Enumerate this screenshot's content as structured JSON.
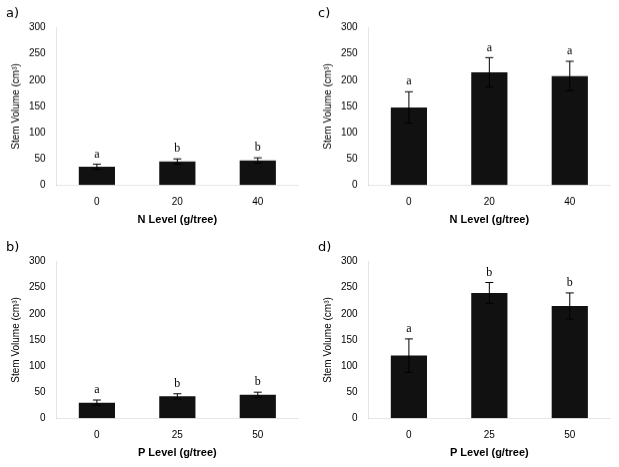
{
  "chart_data": [
    {
      "type": "bar",
      "title": "a)",
      "xlabel": "N Level (g/tree)",
      "ylabel": "Stem Volume (cm³)",
      "categories": [
        "0",
        "20",
        "40"
      ],
      "values": [
        35,
        45,
        47
      ],
      "errors": [
        5,
        5,
        5
      ],
      "sig_labels": [
        "a",
        "b",
        "b"
      ],
      "color": "#111111",
      "ylim": [
        0,
        300
      ],
      "yticks": [
        0,
        50,
        100,
        150,
        200,
        250,
        300
      ],
      "grid": false
    },
    {
      "type": "bar",
      "title": "b)",
      "xlabel": "P Level (g/tree)",
      "ylabel": "Stem Volume (cm³)",
      "categories": [
        "0",
        "25",
        "50"
      ],
      "values": [
        30,
        42,
        45
      ],
      "errors": [
        5,
        5,
        5
      ],
      "sig_labels": [
        "a",
        "b",
        "b"
      ],
      "color": "#111111",
      "ylim": [
        0,
        300
      ],
      "yticks": [
        0,
        50,
        100,
        150,
        200,
        250,
        300
      ],
      "grid": false
    },
    {
      "type": "bar",
      "title": "c)",
      "xlabel": "N Level (g/tree)",
      "ylabel": "Stem Volume (cm³)",
      "categories": [
        "0",
        "20",
        "40"
      ],
      "values": [
        148,
        215,
        208
      ],
      "errors": [
        30,
        28,
        28
      ],
      "sig_labels": [
        "a",
        "a",
        "a"
      ],
      "color": "#111111",
      "ylim": [
        0,
        300
      ],
      "yticks": [
        0,
        50,
        100,
        150,
        200,
        250,
        300
      ],
      "grid": false
    },
    {
      "type": "bar",
      "title": "d)",
      "xlabel": "P Level (g/tree)",
      "ylabel": "Stem Volume (cm³)",
      "categories": [
        "0",
        "25",
        "50"
      ],
      "values": [
        120,
        240,
        215
      ],
      "errors": [
        32,
        20,
        25
      ],
      "sig_labels": [
        "a",
        "b",
        "b"
      ],
      "color": "#111111",
      "ylim": [
        0,
        300
      ],
      "yticks": [
        0,
        50,
        100,
        150,
        200,
        250,
        300
      ],
      "grid": false
    }
  ]
}
